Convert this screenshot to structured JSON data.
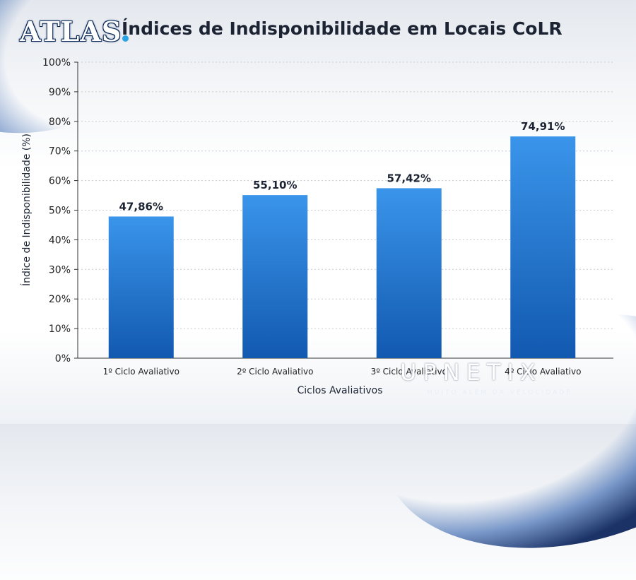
{
  "logo": {
    "text": "ATLAS"
  },
  "watermark": {
    "name": "UPNETIX",
    "tagline": "MUITO ALÉM DA VELOCIDADE"
  },
  "colors": {
    "bar_top": "#3a95ea",
    "bar_bottom": "#1259b0",
    "text": "#1c2433"
  },
  "chart_data": {
    "type": "bar",
    "title": "Índices de Indisponibilidade em Locais CoLR",
    "xlabel": "Ciclos Avaliativos",
    "ylabel": "Índice de Indisponibilidade (%)",
    "categories": [
      "1º Ciclo Avaliativo",
      "2º Ciclo Avaliativo",
      "3º Ciclo Avaliativo",
      "4º Ciclo Avaliativo"
    ],
    "values": [
      47.86,
      55.1,
      57.42,
      74.91
    ],
    "data_labels": [
      "47,86%",
      "55,10%",
      "57,42%",
      "74,91%"
    ],
    "ylim": [
      0,
      100
    ],
    "yticks": [
      "0%",
      "10%",
      "20%",
      "30%",
      "40%",
      "50%",
      "60%",
      "70%",
      "80%",
      "90%",
      "100%"
    ],
    "grid": true,
    "legend": "none"
  }
}
